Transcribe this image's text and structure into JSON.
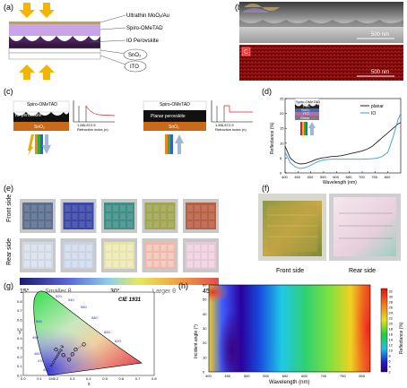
{
  "panels": {
    "a": {
      "label": "(a)",
      "layers": [
        "Ultrathin MoOₓ/Au",
        "Spiro-OMeTAD",
        "IO Perovskite",
        "SnO₂",
        "ITO"
      ],
      "colors": {
        "spiro": "#c9a4e8",
        "perovskite": "#3b1d47",
        "sno2": "#ffffff",
        "ito": "#ffffff",
        "arrow": "#f5b400"
      }
    },
    "b": {
      "label": "(b)",
      "scale_top": "500 nm",
      "scale_bottom": "500 nm",
      "map_letter": "C"
    },
    "c": {
      "label": "(c)",
      "left": {
        "top_layer": "Spiro-OMeTAD",
        "mid_layer": "IO perovskite",
        "bottom_layer": "SnO₂"
      },
      "right": {
        "top_layer": "Spiro-OMeTAD",
        "mid_layer": "Planar perovskite",
        "bottom_layer": "SnO₂"
      },
      "ticks": [
        "1.65",
        "1.87",
        "2.5"
      ],
      "axis_label": "Refractive index (n)"
    },
    "d": {
      "label": "(d)",
      "inset_layers": [
        "Spiro-OMeTAD",
        "PVK",
        "SnO₂",
        "ITO",
        "Glass"
      ]
    },
    "e": {
      "label": "(e)",
      "row_labels": [
        "Front side",
        "Rear side"
      ],
      "front_colors": [
        "#5c6f8f",
        "#3b48a8",
        "#3f8f86",
        "#9fa550",
        "#b86045"
      ],
      "rear_colors": [
        "#cfd8e4",
        "#c9d3e5",
        "#e8e3a8",
        "#f0b8a8",
        "#e9c8d8"
      ],
      "angle_bar": {
        "start": "15°",
        "smaller": "Smaller θ",
        "mid": "30°",
        "larger": "Larger θ",
        "end": "45°"
      }
    },
    "f": {
      "label": "(f)",
      "captions": [
        "Front side",
        "Rear side"
      ]
    },
    "g": {
      "label": "(g)",
      "title": "CIE 1931",
      "annotation": "Increasing θ"
    },
    "h": {
      "label": "(h)"
    }
  },
  "chart_data": [
    {
      "panel": "d",
      "type": "line",
      "xlabel": "Wavelength (nm)",
      "ylabel": "Reflectance (%)",
      "xlim": [
        400,
        850
      ],
      "ylim": [
        0,
        25
      ],
      "xticks": [
        400,
        450,
        500,
        550,
        600,
        650,
        700,
        750,
        800
      ],
      "yticks": [
        0,
        5,
        10,
        15,
        20,
        25
      ],
      "legend_position": "top-right",
      "series": [
        {
          "name": "planar",
          "color": "#222222",
          "x": [
            400,
            420,
            440,
            460,
            480,
            500,
            520,
            540,
            560,
            580,
            600,
            620,
            640,
            660,
            680,
            700,
            720,
            740,
            760,
            780,
            800,
            820,
            840,
            850
          ],
          "y": [
            9,
            5,
            3.5,
            3,
            3.2,
            3.8,
            4.5,
            5,
            5.2,
            5.5,
            5.6,
            5.8,
            6.2,
            6.6,
            7,
            7.4,
            8,
            9,
            10.5,
            12,
            13.5,
            15,
            16.5,
            17
          ]
        },
        {
          "name": "IO",
          "color": "#3f9ad6",
          "x": [
            400,
            420,
            440,
            460,
            480,
            500,
            520,
            540,
            560,
            580,
            600,
            620,
            640,
            660,
            680,
            700,
            720,
            740,
            760,
            780,
            800,
            820,
            840,
            850
          ],
          "y": [
            7,
            3.5,
            2,
            1.5,
            1.8,
            2.6,
            3.5,
            4.2,
            4.5,
            4.6,
            4.6,
            4.6,
            4.6,
            4.6,
            4.6,
            4.6,
            4.7,
            4.8,
            5,
            5.6,
            7,
            12,
            18,
            20
          ]
        }
      ]
    },
    {
      "panel": "g",
      "type": "scatter",
      "xlabel": "x",
      "ylabel": "y",
      "xlim": [
        0,
        0.8
      ],
      "ylim": [
        0,
        0.9
      ],
      "xticks": [
        0.0,
        0.1,
        0.2,
        0.3,
        0.4,
        0.5,
        0.6,
        0.7,
        0.8
      ],
      "yticks": [
        0.0,
        0.1,
        0.2,
        0.3,
        0.4,
        0.5,
        0.6,
        0.7,
        0.8
      ],
      "wavelength_labels": [
        "520",
        "540",
        "560",
        "580",
        "600",
        "620",
        "500",
        "490",
        "480",
        "470",
        "450",
        "380"
      ],
      "series": [
        {
          "name": "",
          "x": [
            0.2,
            0.245,
            0.28,
            0.3,
            0.32,
            0.37
          ],
          "y": [
            0.28,
            0.22,
            0.17,
            0.23,
            0.28,
            0.335
          ]
        }
      ]
    },
    {
      "panel": "h",
      "type": "heatmap",
      "xlabel": "Wavelength (nm)",
      "ylabel": "Incident angle (°)",
      "xlim": [
        400,
        820
      ],
      "ylim": [
        0,
        60
      ],
      "xticks": [
        400,
        450,
        500,
        550,
        600,
        650,
        700,
        750,
        800
      ],
      "yticks": [
        0,
        10,
        20,
        30,
        40,
        50,
        60
      ],
      "colorbar_label": "Reflectance (%)",
      "colorbar_ticks": [
        2,
        4,
        6,
        8,
        10,
        12,
        14,
        16,
        18,
        20,
        22,
        24,
        26,
        28,
        30,
        32
      ],
      "colorbar_range": [
        2,
        33
      ]
    }
  ]
}
